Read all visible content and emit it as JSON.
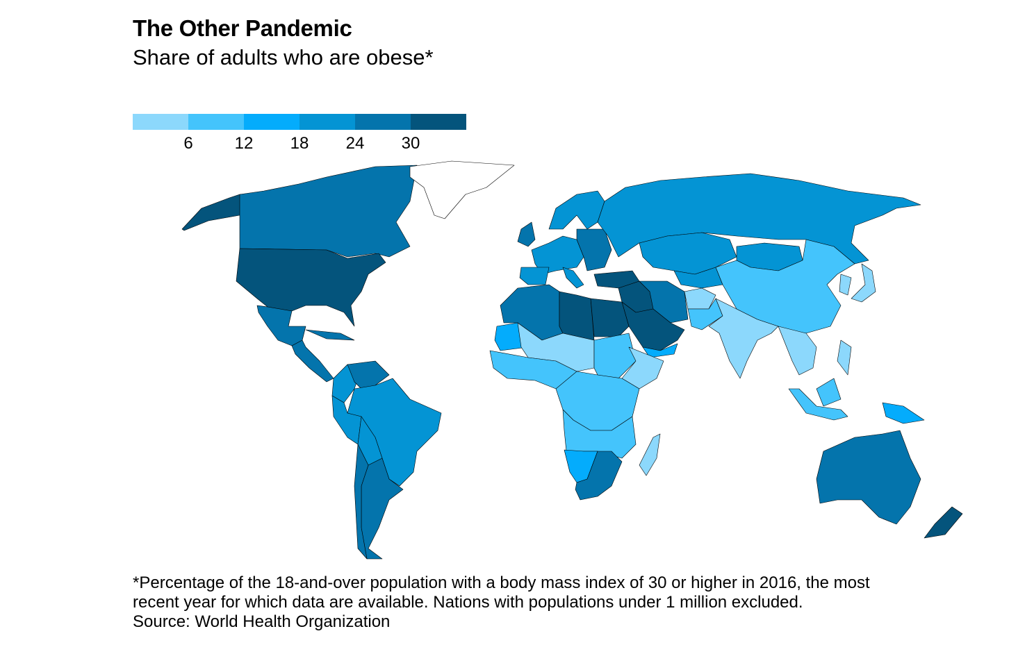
{
  "title": "The Other Pandemic",
  "subtitle": "Share of adults who are obese*",
  "footnote": {
    "line1": "*Percentage of the 18-and-over population with a body mass index of 30 or higher in 2016, the most",
    "line2": "recent year for which data are available. Nations with populations under 1 million excluded.",
    "source": "Source: World Health Organization"
  },
  "chart_data": {
    "type": "choropleth",
    "title": "The Other Pandemic",
    "subtitle": "Share of adults who are obese*",
    "legend": {
      "tick_labels": [
        "6",
        "12",
        "18",
        "24",
        "30"
      ],
      "bins": [
        {
          "range": "<6",
          "color": "#8cd8fc"
        },
        {
          "range": "6-12",
          "color": "#44c4fc"
        },
        {
          "range": "12-18",
          "color": "#04acfc"
        },
        {
          "range": "18-24",
          "color": "#0494d4"
        },
        {
          "range": "24-30",
          "color": "#0474ac"
        },
        {
          "range": ">30",
          "color": "#04547c"
        }
      ],
      "no_data_color": "#ffffff"
    },
    "regions": [
      {
        "name": "Alaska",
        "bin": 5
      },
      {
        "name": "Canada",
        "bin": 4
      },
      {
        "name": "United States",
        "bin": 5
      },
      {
        "name": "Mexico",
        "bin": 4
      },
      {
        "name": "Central America",
        "bin": 4
      },
      {
        "name": "Cuba",
        "bin": 4
      },
      {
        "name": "Colombia",
        "bin": 3
      },
      {
        "name": "Venezuela",
        "bin": 4
      },
      {
        "name": "Brazil",
        "bin": 3
      },
      {
        "name": "Peru",
        "bin": 3
      },
      {
        "name": "Bolivia/Paraguay",
        "bin": 3
      },
      {
        "name": "Argentina",
        "bin": 4
      },
      {
        "name": "Chile",
        "bin": 4
      },
      {
        "name": "Greenland",
        "bin": null
      },
      {
        "name": "UK/Ireland",
        "bin": 4
      },
      {
        "name": "Scandinavia",
        "bin": 3
      },
      {
        "name": "Western Europe",
        "bin": 3
      },
      {
        "name": "Iberia",
        "bin": 3
      },
      {
        "name": "Italy",
        "bin": 3
      },
      {
        "name": "Eastern Europe",
        "bin": 4
      },
      {
        "name": "Russia",
        "bin": 3
      },
      {
        "name": "Kazakhstan",
        "bin": 3
      },
      {
        "name": "Mongolia",
        "bin": 3
      },
      {
        "name": "Central Asia",
        "bin": 3
      },
      {
        "name": "Turkey",
        "bin": 5
      },
      {
        "name": "Iraq/Syria/Jordan",
        "bin": 5
      },
      {
        "name": "Iran",
        "bin": 4
      },
      {
        "name": "Saudi Arabia",
        "bin": 5
      },
      {
        "name": "Yemen",
        "bin": 2
      },
      {
        "name": "Afghanistan",
        "bin": 0
      },
      {
        "name": "Pakistan",
        "bin": 1
      },
      {
        "name": "India",
        "bin": 0
      },
      {
        "name": "China",
        "bin": 1
      },
      {
        "name": "Southeast Asia",
        "bin": 0
      },
      {
        "name": "Japan",
        "bin": 0
      },
      {
        "name": "Korea",
        "bin": 0
      },
      {
        "name": "Sumatra/Java",
        "bin": 1
      },
      {
        "name": "Borneo",
        "bin": 1
      },
      {
        "name": "Philippines",
        "bin": 0
      },
      {
        "name": "Papua New Guinea",
        "bin": 2
      },
      {
        "name": "Australia",
        "bin": 4
      },
      {
        "name": "New Zealand",
        "bin": 5
      },
      {
        "name": "Madagascar",
        "bin": 0
      },
      {
        "name": "Algeria/Morocco",
        "bin": 4
      },
      {
        "name": "Libya",
        "bin": 5
      },
      {
        "name": "Egypt",
        "bin": 5
      },
      {
        "name": "Mauritania",
        "bin": 2
      },
      {
        "name": "Sahel",
        "bin": 0
      },
      {
        "name": "Sudan",
        "bin": 1
      },
      {
        "name": "West Africa",
        "bin": 1
      },
      {
        "name": "Horn of Africa",
        "bin": 0
      },
      {
        "name": "Central/East Africa",
        "bin": 1
      },
      {
        "name": "Southern-Central Africa",
        "bin": 1
      },
      {
        "name": "Namibia/Botswana",
        "bin": 2
      },
      {
        "name": "South Africa",
        "bin": 4
      }
    ]
  }
}
